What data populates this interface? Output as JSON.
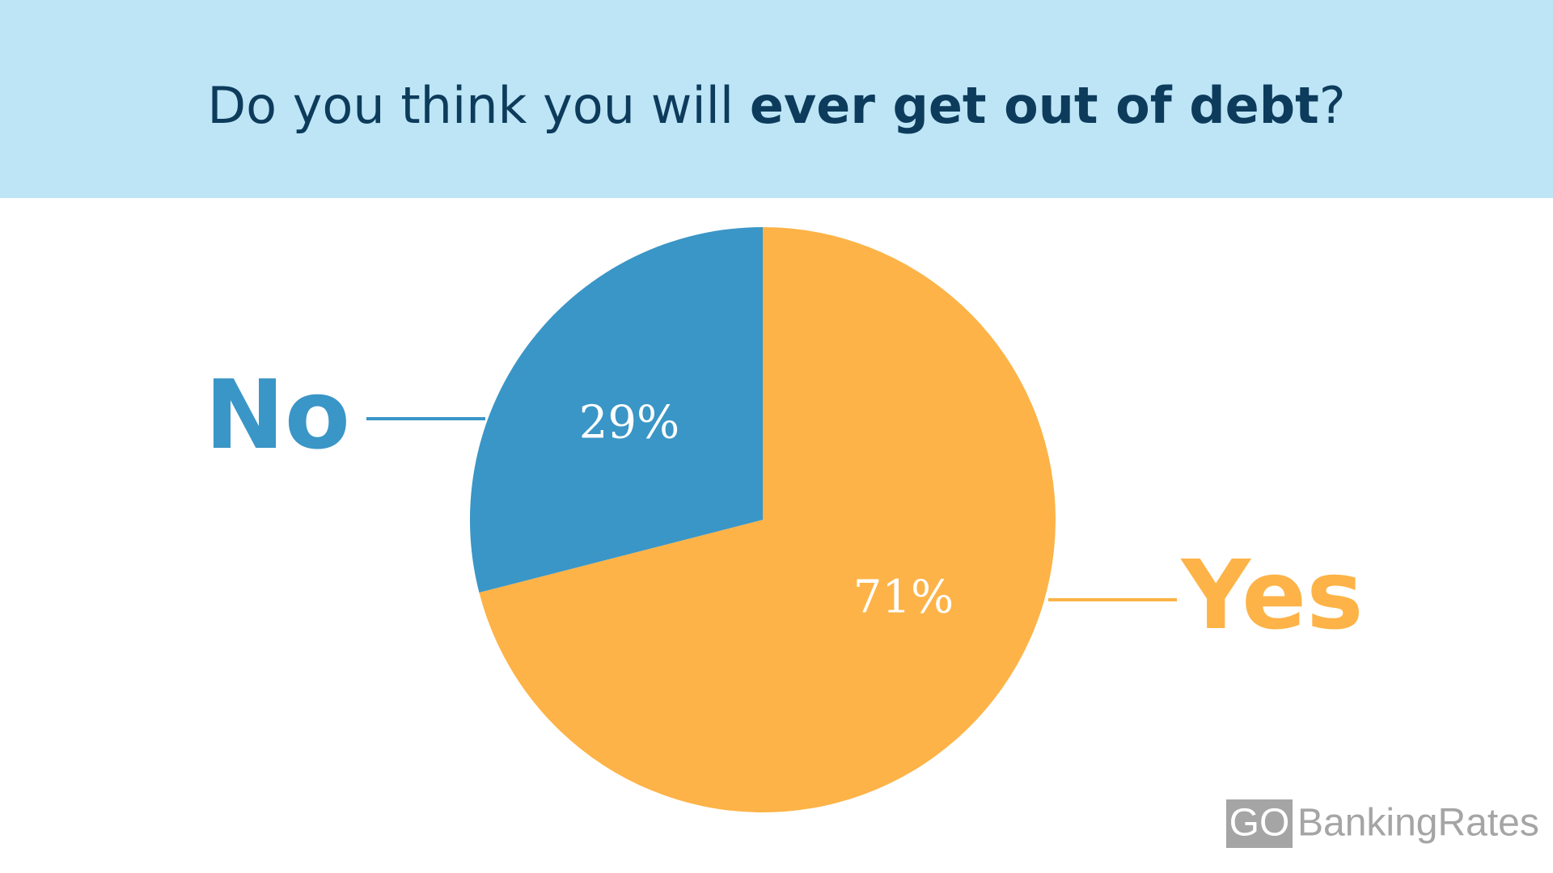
{
  "chart_data": {
    "type": "pie",
    "title": [
      "Do you think you will ",
      "ever get out of debt",
      "?"
    ],
    "categories": [
      "Yes",
      "No"
    ],
    "values": [
      71,
      29
    ],
    "value_labels": [
      "71%",
      "29%"
    ],
    "colors": [
      "#fdb347",
      "#3a96c6"
    ]
  },
  "logo": {
    "box": "GO",
    "text": "BankingRates"
  }
}
